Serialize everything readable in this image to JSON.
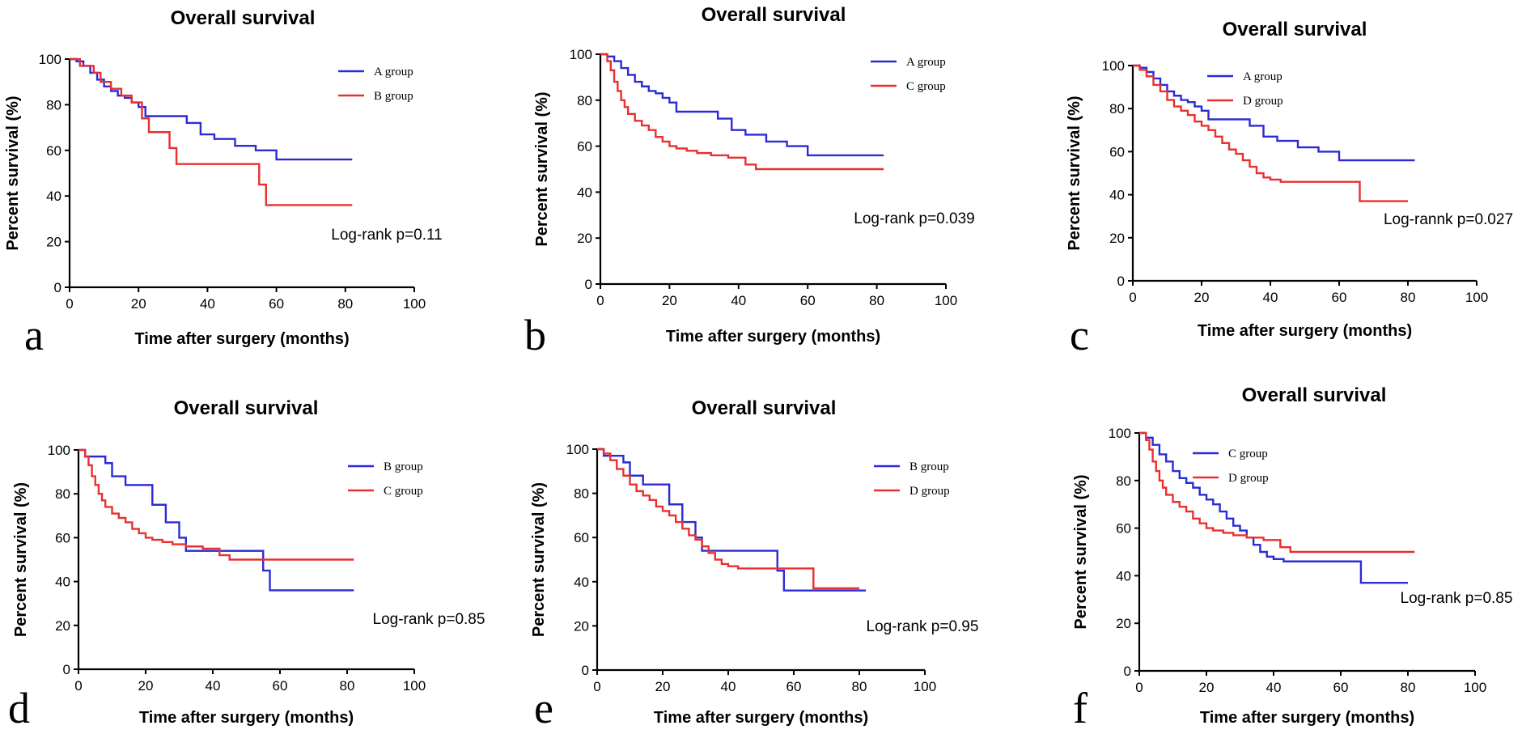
{
  "chart_data": [
    {
      "panel": "a",
      "type": "line",
      "title": "Overall survival",
      "xlabel": "Time after surgery (months)",
      "ylabel": "Percent survival (%)",
      "xlim": [
        0,
        100
      ],
      "ylim": [
        0,
        100
      ],
      "xticks": [
        "0",
        "20",
        "40",
        "60",
        "80",
        "100"
      ],
      "yticks": [
        "0",
        "20",
        "40",
        "60",
        "80",
        "100"
      ],
      "annotation": "Log-rank p=0.11",
      "series": [
        {
          "name": "A group",
          "color": "#2b2bd6",
          "x": [
            0,
            2,
            4,
            6,
            8,
            10,
            12,
            14,
            16,
            18,
            20,
            22,
            30,
            34,
            38,
            42,
            48,
            54,
            60,
            82
          ],
          "y": [
            100,
            99,
            97,
            94,
            91,
            88,
            86,
            84,
            83,
            81,
            79,
            75,
            75,
            72,
            67,
            65,
            62,
            60,
            56,
            56
          ]
        },
        {
          "name": "B group",
          "color": "#e83030",
          "x": [
            0,
            3,
            7,
            9,
            12,
            15,
            18,
            21,
            23,
            29,
            31,
            55,
            57,
            82
          ],
          "y": [
            100,
            97,
            94,
            90,
            87,
            84,
            81,
            74,
            68,
            61,
            54,
            45,
            36,
            36
          ]
        }
      ]
    },
    {
      "panel": "b",
      "type": "line",
      "title": "Overall survival",
      "xlabel": "Time after surgery (months)",
      "ylabel": "Percent survival (%)",
      "xlim": [
        0,
        100
      ],
      "ylim": [
        0,
        100
      ],
      "xticks": [
        "0",
        "20",
        "40",
        "60",
        "80",
        "100"
      ],
      "yticks": [
        "0",
        "20",
        "40",
        "60",
        "80",
        "100"
      ],
      "annotation": "Log-rank p=0.039",
      "series": [
        {
          "name": "A group",
          "color": "#2b2bd6",
          "x": [
            0,
            2,
            4,
            6,
            8,
            10,
            12,
            14,
            16,
            18,
            20,
            22,
            30,
            34,
            38,
            42,
            48,
            54,
            60,
            82
          ],
          "y": [
            100,
            99,
            97,
            94,
            91,
            88,
            86,
            84,
            83,
            81,
            79,
            75,
            75,
            72,
            67,
            65,
            62,
            60,
            56,
            56
          ]
        },
        {
          "name": "C group",
          "color": "#e83030",
          "x": [
            0,
            2,
            3,
            4,
            5,
            6,
            7,
            8,
            10,
            12,
            14,
            16,
            18,
            20,
            22,
            25,
            28,
            32,
            37,
            42,
            45,
            82
          ],
          "y": [
            100,
            97,
            93,
            88,
            84,
            80,
            77,
            74,
            71,
            69,
            67,
            64,
            62,
            60,
            59,
            58,
            57,
            56,
            55,
            52,
            50,
            50
          ]
        }
      ]
    },
    {
      "panel": "c",
      "type": "line",
      "title": "Overall survival",
      "xlabel": "Time after surgery (months)",
      "ylabel": "Percent survival (%)",
      "xlim": [
        0,
        100
      ],
      "ylim": [
        0,
        100
      ],
      "xticks": [
        "0",
        "20",
        "40",
        "60",
        "80",
        "100"
      ],
      "yticks": [
        "0",
        "20",
        "40",
        "60",
        "80",
        "100"
      ],
      "annotation": "Log-rannk p=0.027",
      "series": [
        {
          "name": "A group",
          "color": "#2b2bd6",
          "x": [
            0,
            2,
            4,
            6,
            8,
            10,
            12,
            14,
            16,
            18,
            20,
            22,
            30,
            34,
            38,
            42,
            48,
            54,
            60,
            82
          ],
          "y": [
            100,
            99,
            97,
            94,
            91,
            88,
            86,
            84,
            83,
            81,
            79,
            75,
            75,
            72,
            67,
            65,
            62,
            60,
            56,
            56
          ]
        },
        {
          "name": "D group",
          "color": "#e83030",
          "x": [
            0,
            2,
            4,
            6,
            8,
            10,
            12,
            14,
            16,
            18,
            20,
            22,
            24,
            26,
            28,
            30,
            32,
            34,
            36,
            38,
            40,
            43,
            56,
            66,
            80
          ],
          "y": [
            100,
            98,
            95,
            91,
            88,
            84,
            81,
            79,
            77,
            74,
            72,
            70,
            67,
            64,
            61,
            59,
            56,
            53,
            50,
            48,
            47,
            46,
            46,
            37,
            37
          ]
        }
      ]
    },
    {
      "panel": "d",
      "type": "line",
      "title": "Overall survival",
      "xlabel": "Time after surgery (months)",
      "ylabel": "Percent survival (%)",
      "xlim": [
        0,
        100
      ],
      "ylim": [
        0,
        100
      ],
      "xticks": [
        "0",
        "20",
        "40",
        "60",
        "80",
        "100"
      ],
      "yticks": [
        "0",
        "20",
        "40",
        "60",
        "80",
        "100"
      ],
      "annotation": "Log-rank p=0.85",
      "series": [
        {
          "name": "B group",
          "color": "#2b2bd6",
          "x": [
            0,
            2,
            8,
            10,
            14,
            18,
            22,
            26,
            30,
            32,
            55,
            57,
            82
          ],
          "y": [
            100,
            97,
            94,
            88,
            84,
            84,
            75,
            67,
            60,
            54,
            45,
            36,
            36
          ]
        },
        {
          "name": "C group",
          "color": "#e83030",
          "x": [
            0,
            2,
            3,
            4,
            5,
            6,
            7,
            8,
            10,
            12,
            14,
            16,
            18,
            20,
            22,
            25,
            28,
            32,
            37,
            42,
            45,
            82
          ],
          "y": [
            100,
            97,
            93,
            88,
            84,
            80,
            77,
            74,
            71,
            69,
            67,
            64,
            62,
            60,
            59,
            58,
            57,
            56,
            55,
            52,
            50,
            50
          ]
        }
      ]
    },
    {
      "panel": "e",
      "type": "line",
      "title": "Overall survival",
      "xlabel": "Time after surgery (months)",
      "ylabel": "Percent survival (%)",
      "xlim": [
        0,
        100
      ],
      "ylim": [
        0,
        100
      ],
      "xticks": [
        "0",
        "20",
        "40",
        "60",
        "80",
        "100"
      ],
      "yticks": [
        "0",
        "20",
        "40",
        "60",
        "80",
        "100"
      ],
      "annotation": "Log-rank p=0.95",
      "series": [
        {
          "name": "B group",
          "color": "#2b2bd6",
          "x": [
            0,
            2,
            8,
            10,
            14,
            18,
            22,
            26,
            30,
            32,
            55,
            57,
            82
          ],
          "y": [
            100,
            97,
            94,
            88,
            84,
            84,
            75,
            67,
            60,
            54,
            45,
            36,
            36
          ]
        },
        {
          "name": "D group",
          "color": "#e83030",
          "x": [
            0,
            2,
            4,
            6,
            8,
            10,
            12,
            14,
            16,
            18,
            20,
            22,
            24,
            26,
            28,
            30,
            32,
            34,
            36,
            38,
            40,
            43,
            56,
            66,
            80
          ],
          "y": [
            100,
            98,
            95,
            91,
            88,
            84,
            81,
            79,
            77,
            74,
            72,
            70,
            67,
            64,
            61,
            59,
            56,
            53,
            50,
            48,
            47,
            46,
            46,
            37,
            37
          ]
        }
      ]
    },
    {
      "panel": "f",
      "type": "line",
      "title": "Overall survival",
      "xlabel": "Time after surgery (months)",
      "ylabel": "Percent survival (%)",
      "xlim": [
        0,
        100
      ],
      "ylim": [
        0,
        100
      ],
      "xticks": [
        "0",
        "20",
        "40",
        "60",
        "80",
        "100"
      ],
      "yticks": [
        "0",
        "20",
        "40",
        "60",
        "80",
        "100"
      ],
      "annotation": "Log-rank p=0.85",
      "series": [
        {
          "name": "C group",
          "color": "#2b2bd6",
          "x": [
            0,
            2,
            4,
            6,
            8,
            10,
            12,
            14,
            16,
            18,
            20,
            22,
            24,
            26,
            28,
            30,
            32,
            34,
            36,
            38,
            40,
            43,
            56,
            66,
            80
          ],
          "y": [
            100,
            98,
            95,
            91,
            88,
            84,
            81,
            79,
            77,
            74,
            72,
            70,
            67,
            64,
            61,
            59,
            56,
            53,
            50,
            48,
            47,
            46,
            46,
            37,
            37
          ]
        },
        {
          "name": "D group",
          "color": "#e83030",
          "x": [
            0,
            2,
            3,
            4,
            5,
            6,
            7,
            8,
            10,
            12,
            14,
            16,
            18,
            20,
            22,
            25,
            28,
            32,
            37,
            42,
            45,
            82
          ],
          "y": [
            100,
            97,
            93,
            88,
            84,
            80,
            77,
            74,
            71,
            69,
            67,
            64,
            62,
            60,
            59,
            58,
            57,
            56,
            55,
            52,
            50,
            50
          ]
        }
      ]
    }
  ]
}
